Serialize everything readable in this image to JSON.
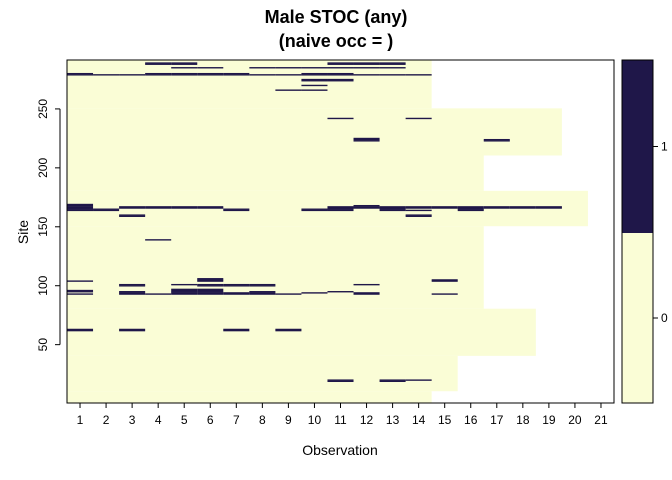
{
  "chart_data": {
    "type": "heatmap",
    "title": "Male STOC (any)",
    "subtitle": "(naive occ = )",
    "xlabel": "Observation",
    "ylabel": "Site",
    "x_ticks": [
      "1",
      "2",
      "3",
      "4",
      "5",
      "6",
      "7",
      "8",
      "9",
      "10",
      "11",
      "12",
      "13",
      "14",
      "15",
      "16",
      "17",
      "18",
      "19",
      "20",
      "21"
    ],
    "y_ticks": [
      "50",
      "100",
      "150",
      "200",
      "250"
    ],
    "xlim": [
      0.5,
      21.5
    ],
    "ylim": [
      1,
      291
    ],
    "grid": false,
    "legend": {
      "placement": "right",
      "labels": [
        "0",
        "1"
      ],
      "colors": [
        "#FAFDD6",
        "#1F1749"
      ]
    },
    "colors": {
      "zero": "#FAFDD6",
      "one": "#1F1749",
      "missing": "#FFFFFF"
    },
    "observations_available": [
      {
        "site_range": [
          1,
          10
        ],
        "last_observation": 14
      },
      {
        "site_range": [
          11,
          40
        ],
        "last_observation": 15
      },
      {
        "site_range": [
          41,
          80
        ],
        "last_observation": 18
      },
      {
        "site_range": [
          81,
          150
        ],
        "last_observation": 16
      },
      {
        "site_range": [
          151,
          180
        ],
        "last_observation": 20
      },
      {
        "site_range": [
          181,
          210
        ],
        "last_observation": 16
      },
      {
        "site_range": [
          211,
          250
        ],
        "last_observation": 19
      },
      {
        "site_range": [
          251,
          291
        ],
        "last_observation": 14
      }
    ],
    "detections": [
      [
        19,
        [
          11,
          13
        ]
      ],
      [
        20,
        [
          11,
          13,
          14
        ]
      ],
      [
        62,
        [
          1,
          3,
          7,
          9
        ]
      ],
      [
        63,
        [
          1,
          3,
          7,
          9
        ]
      ],
      [
        93,
        [
          1,
          3,
          4,
          5,
          6,
          7,
          8,
          9,
          12,
          15
        ]
      ],
      [
        94,
        [
          3,
          5,
          6,
          7,
          8,
          10,
          12
        ]
      ],
      [
        95,
        [
          1,
          3,
          5,
          6,
          8,
          11
        ]
      ],
      [
        96,
        [
          1,
          5,
          6
        ]
      ],
      [
        97,
        [
          5,
          6
        ]
      ],
      [
        100,
        [
          3,
          6,
          7,
          8
        ]
      ],
      [
        101,
        [
          3,
          5,
          6,
          7,
          8,
          12
        ]
      ],
      [
        104,
        [
          1,
          6,
          15
        ]
      ],
      [
        105,
        [
          6,
          15
        ]
      ],
      [
        106,
        [
          6
        ]
      ],
      [
        139,
        [
          4
        ]
      ],
      [
        159,
        [
          3,
          14
        ]
      ],
      [
        160,
        [
          3,
          14
        ]
      ],
      [
        164,
        [
          1,
          2,
          7,
          10,
          11,
          13,
          14,
          16
        ]
      ],
      [
        165,
        [
          1,
          2,
          7,
          10,
          11,
          13,
          16
        ]
      ],
      [
        166,
        [
          1,
          3,
          4,
          5,
          6,
          11,
          12,
          13,
          14,
          15,
          16,
          17,
          18,
          19
        ]
      ],
      [
        167,
        [
          1,
          3,
          4,
          5,
          6,
          11,
          12,
          13,
          14,
          15,
          16,
          17,
          18,
          19
        ]
      ],
      [
        168,
        [
          1,
          12
        ]
      ],
      [
        169,
        [
          1
        ]
      ],
      [
        223,
        [
          12,
          17
        ]
      ],
      [
        224,
        [
          12,
          17
        ]
      ],
      [
        225,
        [
          12
        ]
      ],
      [
        242,
        [
          11,
          14
        ]
      ],
      [
        266,
        [
          9,
          10
        ]
      ],
      [
        270,
        [
          10
        ]
      ],
      [
        274,
        [
          10,
          11
        ]
      ],
      [
        275,
        [
          10,
          11
        ]
      ],
      [
        279,
        [
          1,
          2,
          3,
          4,
          5,
          6,
          7,
          8,
          9,
          10,
          11,
          12,
          13,
          14
        ]
      ],
      [
        280,
        [
          1,
          4,
          5,
          6,
          7,
          10,
          11
        ]
      ],
      [
        285,
        [
          5,
          6,
          8,
          9,
          10,
          11,
          12,
          13
        ]
      ],
      [
        288,
        [
          4,
          5,
          11,
          12,
          13
        ]
      ],
      [
        289,
        [
          4,
          5,
          11,
          12,
          13
        ]
      ]
    ]
  }
}
